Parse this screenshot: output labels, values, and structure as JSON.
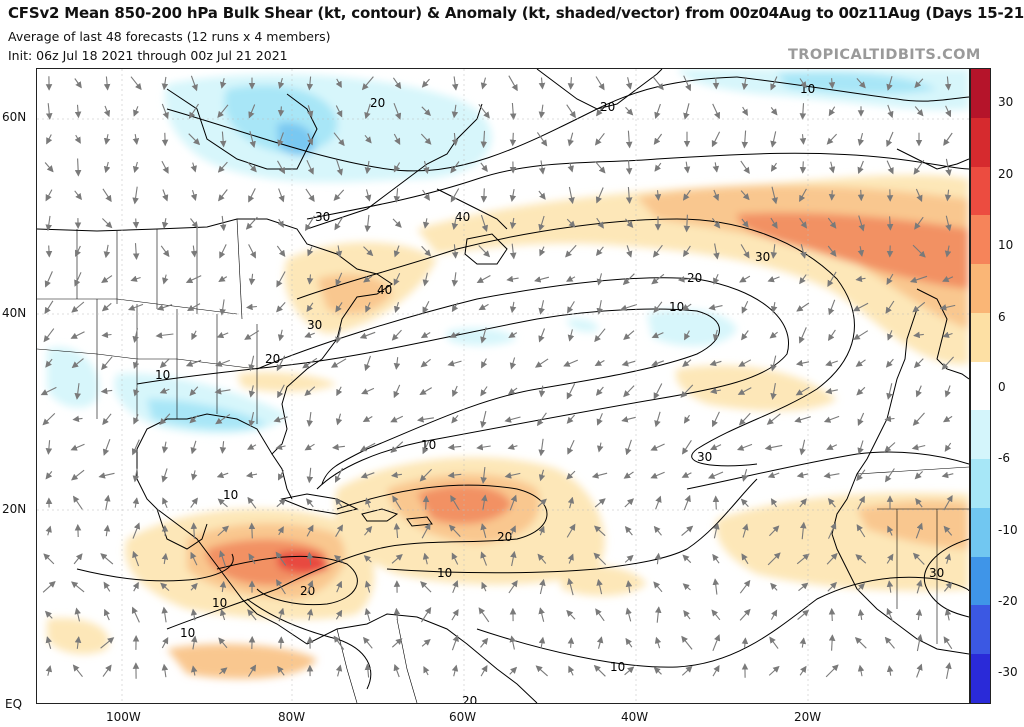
{
  "header": {
    "title": "CFSv2 Mean 850-200 hPa Bulk Shear (kt, contour) & Anomaly (kt, shaded/vector) from 00z04Aug to 00z11Aug (Days 15-21)",
    "line2": "Average of last 48 forecasts (12 runs x 4 members)",
    "line3": "Init: 06z Jul 18 2021 through 00z Jul 21 2021",
    "brand": "TROPICALTIDBITS.COM"
  },
  "map": {
    "lat_labels": [
      "60N",
      "40N",
      "20N",
      "EQ"
    ],
    "lon_labels": [
      "100W",
      "80W",
      "60W",
      "40W",
      "20W"
    ],
    "contour_labels": [
      "20",
      "30",
      "40",
      "40",
      "30",
      "20",
      "10",
      "10",
      "20",
      "30",
      "10",
      "10",
      "30",
      "20",
      "10",
      "10",
      "20",
      "10",
      "10",
      "20",
      "30",
      "20",
      "10"
    ],
    "colors": {
      "land_outline": "#000000",
      "positive_light": "#fde7b8",
      "positive_mid": "#f9c78f",
      "positive_strong": "#f29164",
      "positive_max": "#e8483f",
      "negative_light": "#d7f6fb",
      "negative_mid": "#a8e6f7",
      "negative_strong": "#79c8f1",
      "vector": "#7a7a7a"
    }
  },
  "colorbar": {
    "ticks": [
      "30",
      "20",
      "10",
      "6",
      "0",
      "-6",
      "-10",
      "-20",
      "-30"
    ],
    "colors": [
      "#b5142a",
      "#d62a2e",
      "#ec4c40",
      "#f6845a",
      "#fab676",
      "#fde0a4",
      "#ffffff",
      "#d4f5fb",
      "#a7e7f7",
      "#71c7f1",
      "#3f95e8",
      "#3b58e3",
      "#2a2ad8"
    ]
  }
}
